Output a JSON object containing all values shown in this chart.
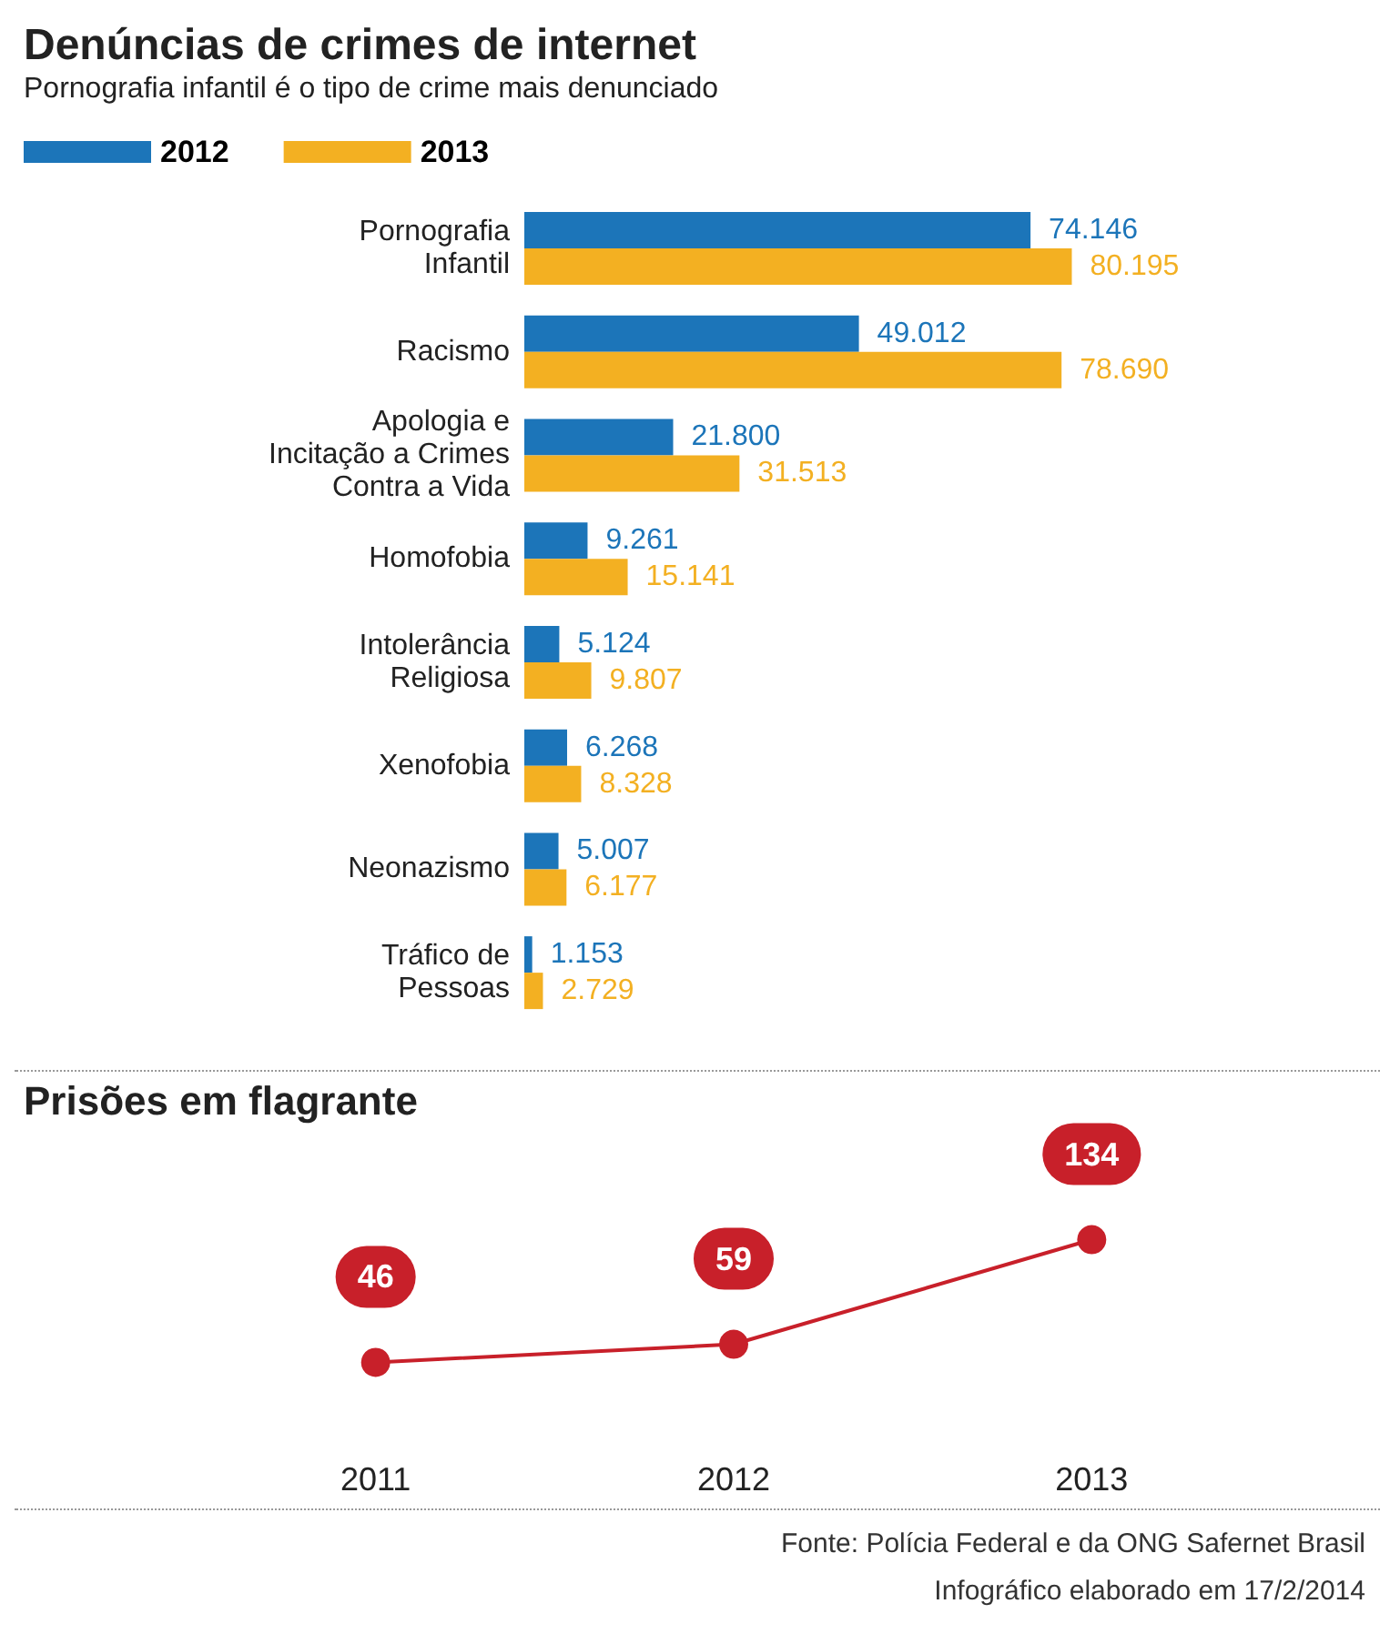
{
  "chart_data": [
    {
      "type": "bar",
      "title": "Denúncias de crimes de internet",
      "subtitle": "Pornografia infantil é o tipo de crime mais denunciado",
      "orientation": "horizontal",
      "legend": "top left",
      "categories": [
        "Pornografia\nInfantil",
        "Racismo",
        "Apologia e\nIncitação a Crimes\nContra a Vida",
        "Homofobia",
        "Intolerância\nReligiosa",
        "Xenofobia",
        "Neonazismo",
        "Tráfico de\nPessoas"
      ],
      "series": [
        {
          "name": "2012",
          "color": "#1c75b9",
          "values": [
            74146,
            49012,
            21800,
            9261,
            5124,
            6268,
            5007,
            1153
          ],
          "value_labels": [
            "74.146",
            "49.012",
            "21.800",
            "9.261",
            "5.124",
            "6.268",
            "5.007",
            "1.153"
          ]
        },
        {
          "name": "2013",
          "color": "#f3b022",
          "values": [
            80195,
            78690,
            31513,
            15141,
            9807,
            8328,
            6177,
            2729
          ],
          "value_labels": [
            "80.195",
            "78.690",
            "31.513",
            "15.141",
            "9.807",
            "8.328",
            "6.177",
            "2.729"
          ]
        }
      ]
    },
    {
      "type": "line",
      "title": "Prisões em flagrante",
      "categories": [
        "2011",
        "2012",
        "2013"
      ],
      "values": [
        46,
        59,
        134
      ],
      "color": "#c8202a",
      "data_labels": true,
      "marker": "circle",
      "legend": false,
      "annotations": [
        "Fonte: Polícia Federal e da ONG Safernet Brasil",
        "Infográfico elaborado em 17/2/2014"
      ]
    }
  ]
}
